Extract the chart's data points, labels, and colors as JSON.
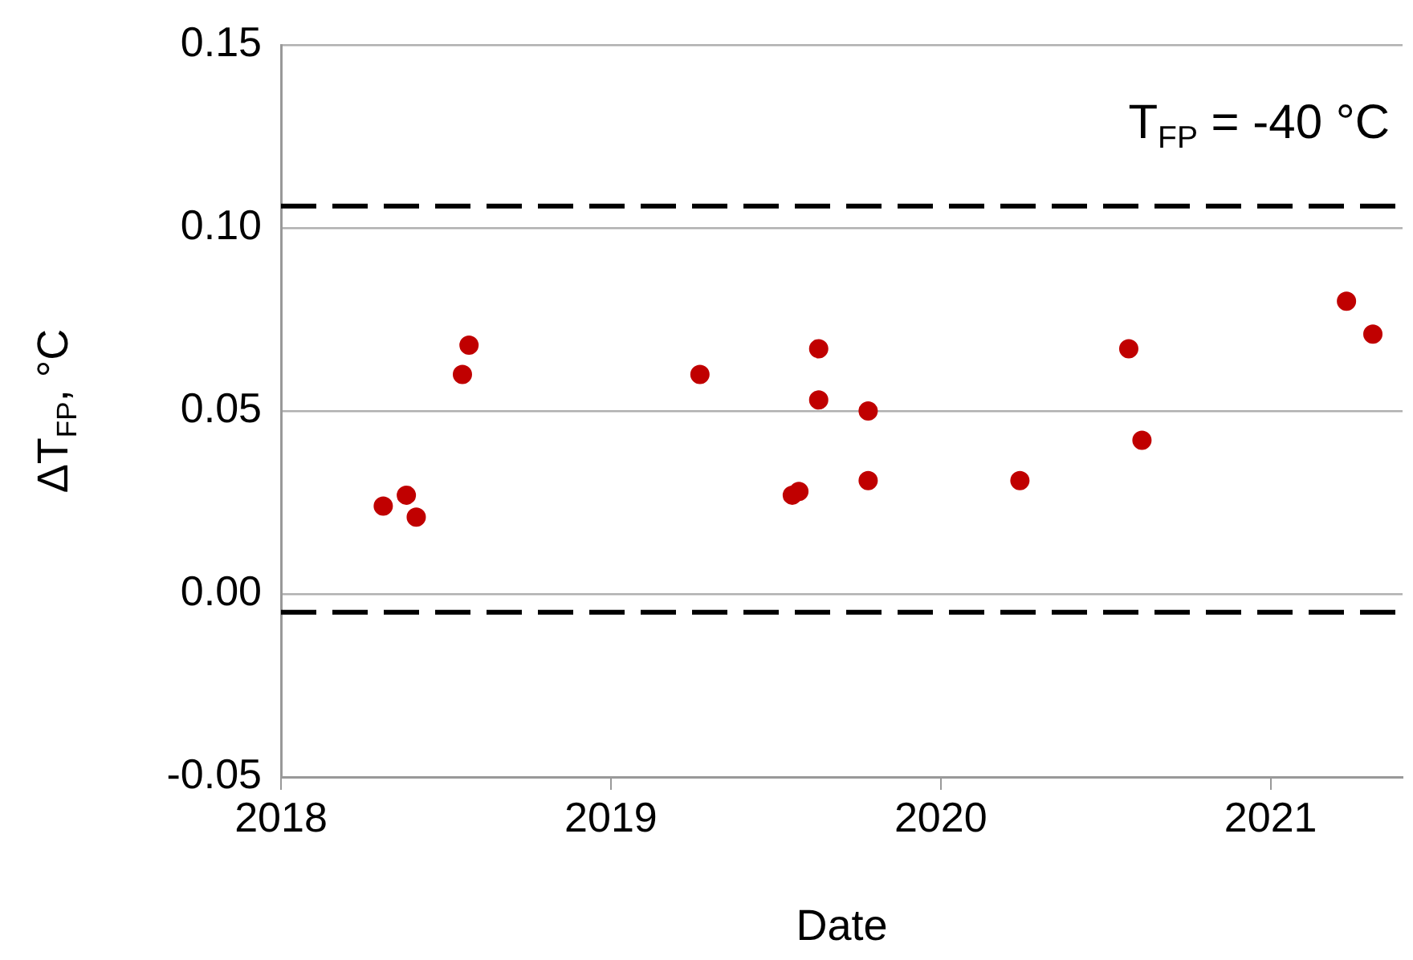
{
  "chart_data": {
    "type": "scatter",
    "xlabel": "Date",
    "ylabel": "ΔT$_{FP}$, °C",
    "annotations": [
      "T$_{FP}$ = -40 °C"
    ],
    "x": [
      2018.31,
      2018.38,
      2018.41,
      2018.55,
      2018.57,
      2019.27,
      2019.55,
      2019.57,
      2019.63,
      2019.63,
      2019.78,
      2019.78,
      2020.24,
      2020.57,
      2020.61,
      2021.23,
      2021.31
    ],
    "values": [
      0.024,
      0.027,
      0.021,
      0.06,
      0.068,
      0.06,
      0.027,
      0.028,
      0.067,
      0.053,
      0.05,
      0.031,
      0.031,
      0.067,
      0.042,
      0.08,
      0.071
    ],
    "color": "#c00000",
    "marker": "circle",
    "xlim": [
      2018,
      2021.4
    ],
    "xticks": [
      2018,
      2019,
      2020,
      2021
    ],
    "ylim": [
      -0.05,
      0.15
    ],
    "yticks": [
      {
        "value": -0.05,
        "label": "-0.05"
      },
      {
        "value": 0,
        "label": "0.00"
      },
      {
        "value": 0.05,
        "label": "0.05"
      },
      {
        "value": 0.1,
        "label": "0.10"
      },
      {
        "value": 0.15,
        "label": "0.15"
      }
    ],
    "ref_lines": [
      {
        "axis": "y",
        "value": 0.106,
        "line_style": "dashed",
        "color": "#000000"
      },
      {
        "axis": "y",
        "value": -0.005,
        "line_style": "dashed",
        "color": "#000000"
      }
    ],
    "grid": "y",
    "legend": false
  }
}
